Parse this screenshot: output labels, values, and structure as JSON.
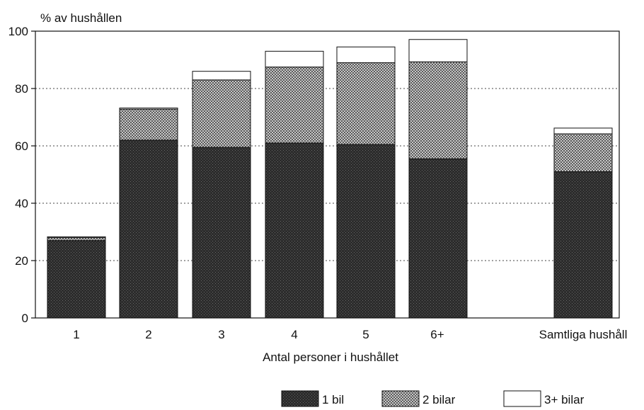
{
  "chart_data": {
    "type": "bar",
    "stacked": true,
    "ylabel": "% av hushållen",
    "xlabel": "Antal personer i hushållet",
    "ylim": [
      0,
      100
    ],
    "yticks": [
      0,
      20,
      40,
      60,
      80,
      100
    ],
    "grid": "dotted horizontal",
    "legend_position": "bottom-right",
    "categories": [
      "1",
      "2",
      "3",
      "4",
      "5",
      "6+",
      "Samtliga hushåll"
    ],
    "series": [
      {
        "name": "1 bil",
        "values": [
          27,
          62,
          59.5,
          61,
          60.5,
          55.5,
          51
        ]
      },
      {
        "name": "2 bilar",
        "values": [
          1,
          10.8,
          23.5,
          26.5,
          28.5,
          33.8,
          13.2
        ]
      },
      {
        "name": "3+ bilar",
        "values": [
          0.3,
          0.4,
          3,
          5.5,
          5.5,
          7.8,
          2
        ]
      }
    ],
    "colors": {
      "1 bil": "#2f2f2f",
      "2 bilar": "#a9a9a9",
      "3+ bilar": "#ffffff"
    }
  }
}
